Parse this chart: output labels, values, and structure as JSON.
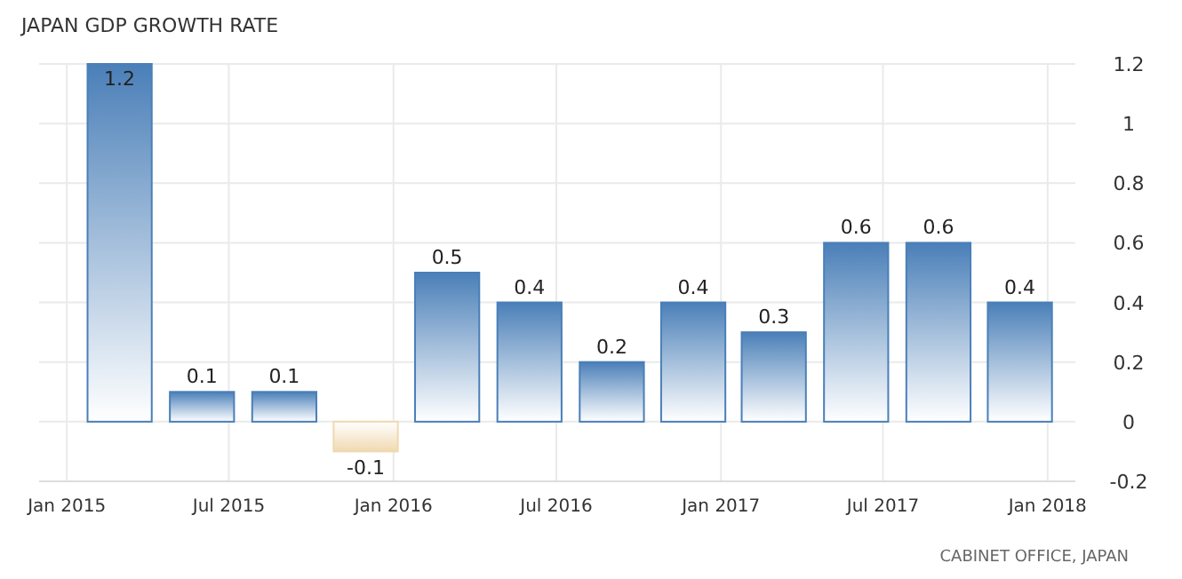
{
  "chart_data": {
    "type": "bar",
    "title": "JAPAN GDP GROWTH RATE",
    "x": [
      "2015-03-01",
      "2015-06-01",
      "2015-09-01",
      "2015-12-01",
      "2016-03-01",
      "2016-06-01",
      "2016-09-01",
      "2016-12-01",
      "2017-03-01",
      "2017-06-01",
      "2017-09-01",
      "2017-12-01"
    ],
    "values": [
      1.2,
      0.1,
      0.1,
      -0.1,
      0.5,
      0.4,
      0.2,
      0.4,
      0.3,
      0.6,
      0.6,
      0.4
    ],
    "colors": [
      "#4a7fb8",
      "#4a7fb8",
      "#4a7fb8",
      "#f0d9b0",
      "#4a7fb8",
      "#4a7fb8",
      "#4a7fb8",
      "#4a7fb8",
      "#4a7fb8",
      "#4a7fb8",
      "#4a7fb8",
      "#4a7fb8"
    ],
    "xlim": [
      "2014-12-01",
      "2018-02-01"
    ],
    "xticks": [
      {
        "value": "2015-01-01",
        "label": "Jan 2015"
      },
      {
        "value": "2015-07-01",
        "label": "Jul 2015"
      },
      {
        "value": "2016-01-01",
        "label": "Jan 2016"
      },
      {
        "value": "2016-07-01",
        "label": "Jul 2016"
      },
      {
        "value": "2017-01-01",
        "label": "Jan 2017"
      },
      {
        "value": "2017-07-01",
        "label": "Jul 2017"
      },
      {
        "value": "2018-01-01",
        "label": "Jan 2018"
      }
    ],
    "ylim": [
      -0.2,
      1.2
    ],
    "yticks": [
      -0.2,
      0,
      0.2,
      0.4,
      0.6,
      0.8,
      1,
      1.2
    ],
    "grid": true,
    "data_labels": true,
    "annotations": [
      "CABINET OFFICE, JAPAN"
    ]
  }
}
